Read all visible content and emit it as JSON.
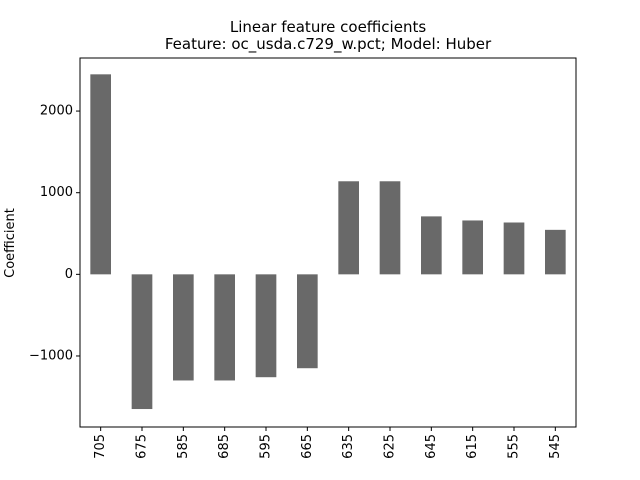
{
  "chart_data": {
    "type": "bar",
    "title": "Linear feature coefficients",
    "subtitle": "Feature: oc_usda.c729_w.pct; Model: Huber",
    "xlabel": "",
    "ylabel": "Coefficient",
    "categories": [
      "705",
      "675",
      "585",
      "685",
      "595",
      "665",
      "635",
      "625",
      "645",
      "615",
      "555",
      "545"
    ],
    "values": [
      2450,
      -1650,
      -1300,
      -1300,
      -1260,
      -1150,
      1140,
      1140,
      710,
      660,
      635,
      545
    ],
    "ylim": [
      -1870,
      2650
    ],
    "yticks": [
      {
        "value": 2000,
        "label": "2000"
      },
      {
        "value": 1000,
        "label": "1000"
      },
      {
        "value": 0,
        "label": "0"
      },
      {
        "value": -1000,
        "label": "−1000"
      }
    ],
    "bar_color": "#696969",
    "grid": false,
    "legend": "none"
  }
}
